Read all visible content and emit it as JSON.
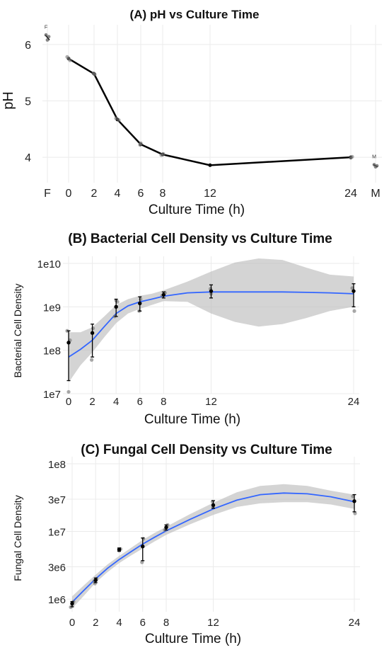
{
  "chart_data": [
    {
      "type": "line",
      "title": "(A) pH vs Culture Time",
      "xlabel": "Culture Time (h)",
      "ylabel": "pH",
      "ylim": [
        3.55,
        6.35
      ],
      "yticks": [
        4,
        5,
        6
      ],
      "xticks": [
        "F",
        "0",
        "2",
        "4",
        "6",
        "8",
        "12",
        "24",
        "M"
      ],
      "x": [
        0,
        2,
        4,
        6,
        8,
        12,
        24
      ],
      "series": [
        {
          "values": [
            5.75,
            5.48,
            4.67,
            4.23,
            4.05,
            3.86,
            4.0
          ]
        }
      ],
      "points": [
        {
          "x": 0,
          "y": 5.78
        },
        {
          "x": 0,
          "y": 5.72
        },
        {
          "x": 0,
          "y": 5.75
        },
        {
          "x": 2,
          "y": 5.49
        },
        {
          "x": 2,
          "y": 5.47
        },
        {
          "x": 4,
          "y": 4.69
        },
        {
          "x": 4,
          "y": 4.66
        },
        {
          "x": 6,
          "y": 4.25
        },
        {
          "x": 6,
          "y": 4.22
        },
        {
          "x": 8,
          "y": 4.06
        },
        {
          "x": 8,
          "y": 4.04
        },
        {
          "x": 24,
          "y": 4.01
        },
        {
          "x": 24,
          "y": 3.99
        }
      ],
      "extra": [
        {
          "label": "F",
          "values": [
            6.17,
            6.14,
            6.08
          ]
        },
        {
          "label": "M",
          "values": [
            3.87,
            3.85,
            3.83
          ]
        }
      ],
      "line_color": "#000000",
      "grid": true
    },
    {
      "type": "line",
      "title": "(B) Bacterial Cell Density vs Culture Time",
      "xlabel": "Culture Time (h)",
      "ylabel": "Bacterial Cell Density",
      "scale": "log",
      "ylim": [
        10000000.0,
        10000000000.0
      ],
      "ytick_values": [
        10000000.0,
        100000000.0,
        1000000000.0,
        10000000000.0
      ],
      "ytick_labels": [
        "1e7",
        "1e8",
        "1e9",
        "1e10"
      ],
      "xlim": [
        0,
        24
      ],
      "xticks": [
        0,
        2,
        4,
        6,
        8,
        12,
        24
      ],
      "means": [
        {
          "x": 0,
          "y": 150000000.0,
          "lo": 20000000.0,
          "hi": 280000000.0
        },
        {
          "x": 2,
          "y": 250000000.0,
          "lo": 70000000.0,
          "hi": 400000000.0
        },
        {
          "x": 4,
          "y": 1000000000.0,
          "lo": 600000000.0,
          "hi": 1500000000.0
        },
        {
          "x": 6,
          "y": 1200000000.0,
          "lo": 800000000.0,
          "hi": 1700000000.0
        },
        {
          "x": 8,
          "y": 1900000000.0,
          "lo": 1600000000.0,
          "hi": 2200000000.0
        },
        {
          "x": 12,
          "y": 2300000000.0,
          "lo": 1600000000.0,
          "hi": 3200000000.0
        },
        {
          "x": 24,
          "y": 2300000000.0,
          "lo": 1000000000.0,
          "hi": 3400000000.0
        }
      ],
      "points": [
        {
          "x": 0,
          "y": 280000000.0
        },
        {
          "x": 0,
          "y": 170000000.0
        },
        {
          "x": 0,
          "y": 11000000.0
        },
        {
          "x": 2,
          "y": 60000000.0
        },
        {
          "x": 2,
          "y": 320000000.0
        },
        {
          "x": 4,
          "y": 600000000.0
        },
        {
          "x": 4,
          "y": 1300000000.0
        },
        {
          "x": 4,
          "y": 1400000000.0
        },
        {
          "x": 6,
          "y": 800000000.0
        },
        {
          "x": 6,
          "y": 1500000000.0
        },
        {
          "x": 8,
          "y": 1800000000.0
        },
        {
          "x": 8,
          "y": 2100000000.0
        },
        {
          "x": 12,
          "y": 2000000000.0
        },
        {
          "x": 12,
          "y": 2600000000.0
        },
        {
          "x": 24,
          "y": 800000000.0
        },
        {
          "x": 24,
          "y": 2700000000.0
        }
      ],
      "smooth": [
        {
          "x": 0,
          "y": 70000000.0,
          "lo": 18000000.0,
          "hi": 260000000.0
        },
        {
          "x": 1,
          "y": 105000000.0,
          "lo": 45000000.0,
          "hi": 260000000.0
        },
        {
          "x": 2,
          "y": 170000000.0,
          "lo": 90000000.0,
          "hi": 340000000.0
        },
        {
          "x": 3,
          "y": 350000000.0,
          "lo": 200000000.0,
          "hi": 600000000.0
        },
        {
          "x": 4,
          "y": 700000000.0,
          "lo": 420000000.0,
          "hi": 1100000000.0
        },
        {
          "x": 5,
          "y": 1050000000.0,
          "lo": 700000000.0,
          "hi": 1500000000.0
        },
        {
          "x": 6,
          "y": 1300000000.0,
          "lo": 900000000.0,
          "hi": 1800000000.0
        },
        {
          "x": 7,
          "y": 1500000000.0,
          "lo": 1100000000.0,
          "hi": 2000000000.0
        },
        {
          "x": 8,
          "y": 1750000000.0,
          "lo": 1350000000.0,
          "hi": 2400000000.0
        },
        {
          "x": 10,
          "y": 2100000000.0,
          "lo": 1300000000.0,
          "hi": 3800000000.0
        },
        {
          "x": 12,
          "y": 2200000000.0,
          "lo": 700000000.0,
          "hi": 6500000000.0
        },
        {
          "x": 14,
          "y": 2200000000.0,
          "lo": 450000000.0,
          "hi": 10500000000.0
        },
        {
          "x": 16,
          "y": 2200000000.0,
          "lo": 350000000.0,
          "hi": 13000000000.0
        },
        {
          "x": 18,
          "y": 2200000000.0,
          "lo": 400000000.0,
          "hi": 12000000000.0
        },
        {
          "x": 20,
          "y": 2150000000.0,
          "lo": 550000000.0,
          "hi": 8000000000.0
        },
        {
          "x": 22,
          "y": 2100000000.0,
          "lo": 800000000.0,
          "hi": 5500000000.0
        },
        {
          "x": 24,
          "y": 2000000000.0,
          "lo": 1000000000.0,
          "hi": 5000000000.0
        }
      ],
      "line_color": "#3366ff",
      "ribbon_color": "#bdbdbd",
      "grid": true
    },
    {
      "type": "line",
      "title": "(C) Fungal Cell Density vs Culture Time",
      "xlabel": "Culture Time (h)",
      "ylabel": "Fungal Cell Density",
      "scale": "log",
      "ylim": [
        650000.0,
        100000000.0
      ],
      "ytick_values": [
        1000000.0,
        3000000.0,
        10000000.0,
        30000000.0,
        100000000.0
      ],
      "ytick_labels": [
        "1e6",
        "3e6",
        "1e7",
        "3e7",
        "1e8"
      ],
      "xlim": [
        0,
        24
      ],
      "xticks": [
        0,
        2,
        4,
        6,
        8,
        12,
        24
      ],
      "means": [
        {
          "x": 0,
          "y": 860000.0,
          "lo": 770000.0,
          "hi": 920000.0
        },
        {
          "x": 2,
          "y": 1900000.0,
          "lo": 1750000.0,
          "hi": 2050000.0
        },
        {
          "x": 4,
          "y": 5400000.0,
          "lo": 5100000.0,
          "hi": 5700000.0
        },
        {
          "x": 6,
          "y": 6000000.0,
          "lo": 3700000.0,
          "hi": 8000000.0
        },
        {
          "x": 8,
          "y": 11500000.0,
          "lo": 10500000.0,
          "hi": 12500000.0
        },
        {
          "x": 12,
          "y": 24500000.0,
          "lo": 22000000.0,
          "hi": 28500000.0
        },
        {
          "x": 24,
          "y": 28000000.0,
          "lo": 19500000.0,
          "hi": 35000000.0
        }
      ],
      "points": [
        {
          "x": 0,
          "y": 760000.0
        },
        {
          "x": 0,
          "y": 920000.0
        },
        {
          "x": 0,
          "y": 840000.0
        },
        {
          "x": 2,
          "y": 1700000.0
        },
        {
          "x": 2,
          "y": 2000000.0
        },
        {
          "x": 2,
          "y": 1850000.0
        },
        {
          "x": 4,
          "y": 5500000.0
        },
        {
          "x": 4,
          "y": 5200000.0
        },
        {
          "x": 6,
          "y": 3500000.0
        },
        {
          "x": 6,
          "y": 7800000.0
        },
        {
          "x": 8,
          "y": 10500000.0
        },
        {
          "x": 8,
          "y": 12500000.0
        },
        {
          "x": 12,
          "y": 23000000.0
        },
        {
          "x": 12,
          "y": 27500000.0
        },
        {
          "x": 24,
          "y": 18500000.0
        },
        {
          "x": 24,
          "y": 33000000.0
        }
      ],
      "smooth": [
        {
          "x": 0,
          "y": 900000.0,
          "lo": 730000.0,
          "hi": 1100000.0
        },
        {
          "x": 1,
          "y": 1350000.0,
          "lo": 1120000.0,
          "hi": 1600000.0
        },
        {
          "x": 2,
          "y": 2000000.0,
          "lo": 1750000.0,
          "hi": 2300000.0
        },
        {
          "x": 3,
          "y": 2850000.0,
          "lo": 2500000.0,
          "hi": 3250000.0
        },
        {
          "x": 4,
          "y": 3850000.0,
          "lo": 3400000.0,
          "hi": 4350000.0
        },
        {
          "x": 5,
          "y": 5000000.0,
          "lo": 4400000.0,
          "hi": 5700000.0
        },
        {
          "x": 6,
          "y": 6500000.0,
          "lo": 5600000.0,
          "hi": 7500000.0
        },
        {
          "x": 7,
          "y": 8200000.0,
          "lo": 7100000.0,
          "hi": 9500000.0
        },
        {
          "x": 8,
          "y": 10200000.0,
          "lo": 8900000.0,
          "hi": 11700000.0
        },
        {
          "x": 10,
          "y": 15000000.0,
          "lo": 12700000.0,
          "hi": 18000000.0
        },
        {
          "x": 12,
          "y": 21500000.0,
          "lo": 17500000.0,
          "hi": 26500000.0
        },
        {
          "x": 14,
          "y": 29000000.0,
          "lo": 23000000.0,
          "hi": 38000000.0
        },
        {
          "x": 16,
          "y": 35000000.0,
          "lo": 26000000.0,
          "hi": 47000000.0
        },
        {
          "x": 18,
          "y": 37000000.0,
          "lo": 27000000.0,
          "hi": 50000000.0
        },
        {
          "x": 20,
          "y": 36000000.0,
          "lo": 27000000.0,
          "hi": 47000000.0
        },
        {
          "x": 22,
          "y": 32500000.0,
          "lo": 25000000.0,
          "hi": 40000000.0
        },
        {
          "x": 24,
          "y": 27500000.0,
          "lo": 21500000.0,
          "hi": 35000000.0
        }
      ],
      "line_color": "#3366ff",
      "ribbon_color": "#bdbdbd",
      "grid": true
    }
  ]
}
